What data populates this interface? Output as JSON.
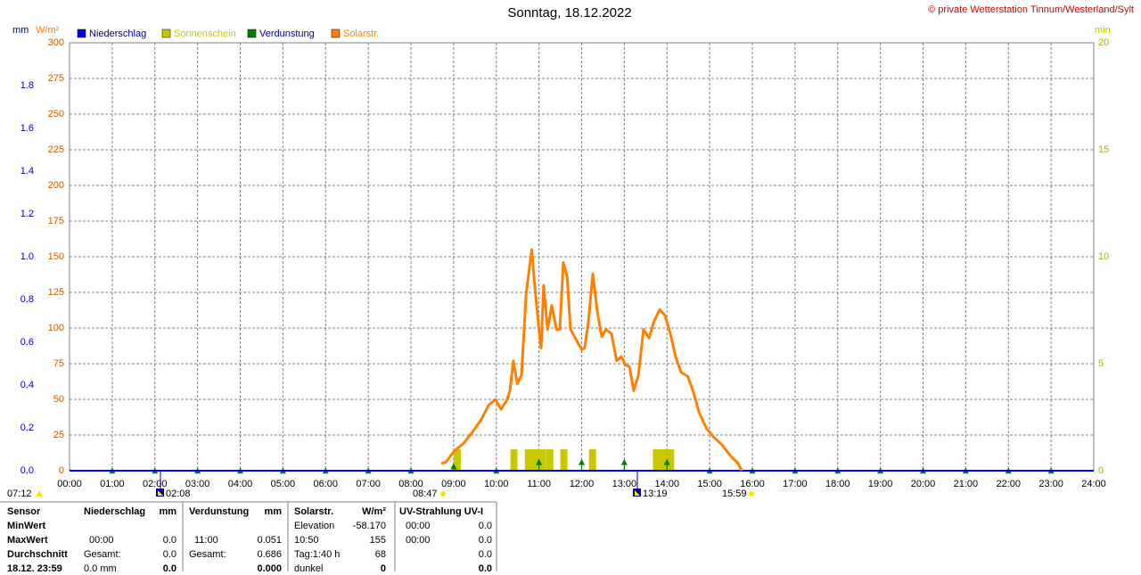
{
  "chart_data": {
    "type": "line",
    "title": "Sonntag, 18.12.2022",
    "copyright": "© private Wetterstation Tinnum/Westerland/Sylt",
    "y_label": "W/m²",
    "y2_label": "min",
    "y3_label": "mm",
    "xlim": [
      0,
      24
    ],
    "xticks": [
      {
        "value": 0,
        "label": "00:00"
      },
      {
        "value": 1,
        "label": "01:00"
      },
      {
        "value": 2,
        "label": "02:00"
      },
      {
        "value": 3,
        "label": "03:00"
      },
      {
        "value": 4,
        "label": "04:00"
      },
      {
        "value": 5,
        "label": "05:00"
      },
      {
        "value": 6,
        "label": "06:00"
      },
      {
        "value": 7,
        "label": "07:00"
      },
      {
        "value": 8,
        "label": "08:00"
      },
      {
        "value": 9,
        "label": "09:00"
      },
      {
        "value": 10,
        "label": "10:00"
      },
      {
        "value": 11,
        "label": "11:00"
      },
      {
        "value": 12,
        "label": "12:00"
      },
      {
        "value": 13,
        "label": "13:00"
      },
      {
        "value": 14,
        "label": "14:00"
      },
      {
        "value": 15,
        "label": "15:00"
      },
      {
        "value": 16,
        "label": "16:00"
      },
      {
        "value": 17,
        "label": "17:00"
      },
      {
        "value": 18,
        "label": "18:00"
      },
      {
        "value": 19,
        "label": "19:00"
      },
      {
        "value": 20,
        "label": "20:00"
      },
      {
        "value": 21,
        "label": "21:00"
      },
      {
        "value": 22,
        "label": "22:00"
      },
      {
        "value": 23,
        "label": "23:00"
      },
      {
        "value": 24,
        "label": "24:00"
      }
    ],
    "ylim": [
      0,
      300
    ],
    "yticks": [
      0,
      25,
      50,
      75,
      100,
      125,
      150,
      175,
      200,
      225,
      250,
      275,
      300
    ],
    "y2lim": [
      0,
      20
    ],
    "y2ticks": [
      0,
      5,
      10,
      15,
      20
    ],
    "y3lim": [
      0,
      2
    ],
    "y3ticks": [
      {
        "value": 0,
        "label": "0.0"
      },
      0.2,
      0.4,
      0.6,
      0.8,
      {
        "value": 1,
        "label": "1.0"
      },
      1.2,
      1.4,
      1.6,
      1.8
    ],
    "grid": true,
    "series": [
      {
        "name": "Niederschlag",
        "color": "#0000ff",
        "type": "line",
        "axis": "y3",
        "x": [
          0,
          24
        ],
        "values": [
          0,
          0
        ]
      },
      {
        "name": "Sonnenschein",
        "color": "#c8c800",
        "type": "bar",
        "axis": "y2",
        "x": [
          9.0,
          10.33,
          10.67,
          10.83,
          11.0,
          11.17,
          11.5,
          12.17,
          13.67,
          13.83,
          14.0
        ],
        "values": [
          1,
          1,
          1,
          1,
          1,
          1,
          1,
          1,
          1,
          1,
          1
        ]
      },
      {
        "name": "Verdunstung",
        "color": "#008000",
        "type": "marker",
        "axis": "y3",
        "x": [
          1,
          2,
          3,
          4,
          5,
          6,
          7,
          8,
          9,
          10,
          11,
          12,
          13,
          14,
          15,
          16,
          17,
          18,
          19,
          20,
          21,
          22,
          23
        ],
        "values": [
          0.01,
          0.01,
          0.01,
          0.01,
          0.01,
          0.01,
          0.01,
          0.01,
          0.03,
          0.01,
          0.05,
          0.05,
          0.05,
          0.05,
          0.01,
          0.01,
          0.01,
          0.01,
          0.01,
          0.01,
          0.01,
          0.01,
          0.01
        ]
      },
      {
        "name": "Solarstr.",
        "color": "#ff8000",
        "type": "line",
        "x": [
          8.71,
          8.82,
          9.02,
          9.23,
          9.44,
          9.65,
          9.82,
          9.98,
          10.11,
          10.24,
          10.32,
          10.4,
          10.49,
          10.59,
          10.7,
          10.83,
          10.9,
          10.99,
          11.05,
          11.11,
          11.2,
          11.3,
          11.41,
          11.49,
          11.57,
          11.66,
          11.74,
          11.85,
          12.0,
          12.07,
          12.16,
          12.26,
          12.37,
          12.47,
          12.57,
          12.7,
          12.82,
          12.93,
          13.03,
          13.12,
          13.22,
          13.33,
          13.45,
          13.58,
          13.7,
          13.83,
          13.95,
          14.08,
          14.2,
          14.33,
          14.49,
          14.62,
          14.75,
          14.92,
          15.08,
          15.29,
          15.5,
          15.67,
          15.75
        ],
        "values": [
          5,
          6,
          14,
          19,
          27,
          36,
          46,
          50,
          43,
          49,
          56,
          77,
          61,
          67,
          124,
          155,
          130,
          102,
          86,
          130,
          99,
          116,
          99,
          99,
          146,
          136,
          99,
          93,
          85,
          86,
          105,
          138,
          111,
          94,
          99,
          96,
          77,
          80,
          74,
          73,
          56,
          67,
          99,
          93,
          105,
          113,
          109,
          96,
          80,
          69,
          66,
          55,
          41,
          30,
          24,
          18,
          10,
          5,
          0
        ]
      }
    ],
    "events": [
      "07:12",
      "02:08",
      "08:47",
      "13:19",
      "15:59"
    ]
  },
  "table": {
    "header": [
      "Sensor",
      "Niederschlag",
      "mm",
      "Verdunstung",
      "mm",
      "Solarstr.",
      "W/m²",
      "UV-Strahlung UV-I"
    ],
    "rows": [
      [
        "MinWert",
        null,
        null,
        null,
        null,
        "Elevation",
        "-58.170",
        "00:00",
        "0.0"
      ],
      [
        "MaxWert",
        "00:00",
        "0.0",
        "11:00",
        "0.051",
        "10:50",
        "155",
        "00:00",
        "0.0"
      ],
      [
        "Durchschnitt",
        "Gesamt:",
        "0.0",
        "Gesamt:",
        "0.686",
        "Tag:1:40 h",
        "68",
        null,
        "0.0"
      ],
      [
        "18.12. 23:59",
        "0.0 mm",
        "0.0",
        null,
        "0.000",
        "dunkel",
        "0",
        null,
        "0.0"
      ]
    ]
  }
}
